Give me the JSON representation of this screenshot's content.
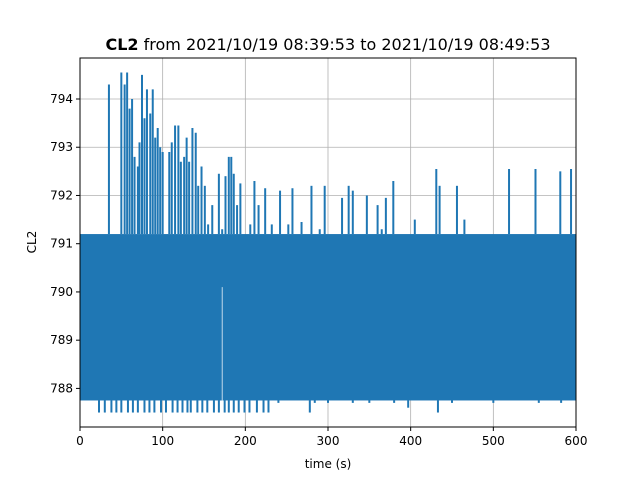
{
  "chart_data": {
    "type": "line",
    "title_bold": "CL2",
    "title_rest": " from 2021/10/19 08:39:53 to 2021/10/19 08:49:53",
    "xlabel": "time (s)",
    "ylabel": "CL2",
    "xlim": [
      0,
      600
    ],
    "ylim": [
      787.2,
      794.85
    ],
    "xticks": [
      0,
      100,
      200,
      300,
      400,
      500,
      600
    ],
    "yticks": [
      788,
      789,
      790,
      791,
      792,
      793,
      794
    ],
    "grid": true,
    "legend": "none",
    "series": [
      {
        "color": "#1f77b4",
        "baseline": {
          "low": 787.75,
          "high": 791.2
        },
        "spikes_up": [
          [
            22,
            791.2
          ],
          [
            25,
            791.2
          ],
          [
            35,
            794.3
          ],
          [
            45,
            791.2
          ],
          [
            50,
            794.55
          ],
          [
            54,
            794.3
          ],
          [
            57,
            794.55
          ],
          [
            60,
            793.8
          ],
          [
            63,
            794.0
          ],
          [
            66,
            792.8
          ],
          [
            70,
            792.6
          ],
          [
            72,
            793.1
          ],
          [
            75,
            794.5
          ],
          [
            78,
            793.6
          ],
          [
            81,
            794.2
          ],
          [
            85,
            793.7
          ],
          [
            88,
            794.2
          ],
          [
            91,
            793.2
          ],
          [
            94,
            793.4
          ],
          [
            97,
            793.0
          ],
          [
            100,
            792.9
          ],
          [
            103,
            791.2
          ],
          [
            108,
            792.9
          ],
          [
            111,
            793.1
          ],
          [
            115,
            793.45
          ],
          [
            119,
            793.45
          ],
          [
            122,
            792.7
          ],
          [
            126,
            792.8
          ],
          [
            129,
            793.2
          ],
          [
            132,
            792.7
          ],
          [
            136,
            793.4
          ],
          [
            140,
            793.3
          ],
          [
            143,
            792.2
          ],
          [
            147,
            792.6
          ],
          [
            151,
            792.2
          ],
          [
            155,
            791.4
          ],
          [
            160,
            791.8
          ],
          [
            168,
            792.45
          ],
          [
            172,
            791.3
          ],
          [
            176,
            792.4
          ],
          [
            180,
            792.8
          ],
          [
            183,
            792.8
          ],
          [
            186,
            792.45
          ],
          [
            190,
            791.8
          ],
          [
            194,
            792.25
          ],
          [
            200,
            791.2
          ],
          [
            206,
            791.4
          ],
          [
            211,
            792.3
          ],
          [
            216,
            791.8
          ],
          [
            224,
            792.15
          ],
          [
            232,
            791.4
          ],
          [
            242,
            792.1
          ],
          [
            252,
            791.4
          ],
          [
            257,
            792.15
          ],
          [
            262,
            791.2
          ],
          [
            268,
            791.45
          ],
          [
            280,
            792.2
          ],
          [
            290,
            791.3
          ],
          [
            296,
            792.2
          ],
          [
            310,
            791.2
          ],
          [
            317,
            791.95
          ],
          [
            325,
            792.2
          ],
          [
            330,
            792.1
          ],
          [
            338,
            791.2
          ],
          [
            347,
            792.0
          ],
          [
            352,
            791.2
          ],
          [
            360,
            791.8
          ],
          [
            365,
            791.3
          ],
          [
            370,
            791.95
          ],
          [
            379,
            792.3
          ],
          [
            386,
            791.2
          ],
          [
            396,
            791.2
          ],
          [
            405,
            791.5
          ],
          [
            414,
            791.2
          ],
          [
            426,
            791.2
          ],
          [
            431,
            792.55
          ],
          [
            435,
            792.2
          ],
          [
            445,
            791.2
          ],
          [
            456,
            792.2
          ],
          [
            465,
            791.5
          ],
          [
            470,
            791.2
          ],
          [
            485,
            791.2
          ],
          [
            495,
            791.2
          ],
          [
            519,
            792.55
          ],
          [
            530,
            791.2
          ],
          [
            540,
            791.2
          ],
          [
            551,
            792.55
          ],
          [
            560,
            791.2
          ],
          [
            575,
            791.2
          ],
          [
            581,
            792.5
          ],
          [
            589,
            791.2
          ],
          [
            594,
            792.55
          ],
          [
            598,
            791.2
          ]
        ],
        "spikes_down": [
          [
            23,
            787.5
          ],
          [
            30,
            787.5
          ],
          [
            38,
            787.5
          ],
          [
            44,
            787.5
          ],
          [
            50,
            787.5
          ],
          [
            58,
            787.5
          ],
          [
            64,
            787.5
          ],
          [
            70,
            787.5
          ],
          [
            78,
            787.5
          ],
          [
            84,
            787.5
          ],
          [
            90,
            787.5
          ],
          [
            98,
            787.5
          ],
          [
            104,
            787.5
          ],
          [
            112,
            787.5
          ],
          [
            118,
            787.5
          ],
          [
            124,
            787.5
          ],
          [
            130,
            787.5
          ],
          [
            134,
            787.5
          ],
          [
            142,
            787.5
          ],
          [
            148,
            787.5
          ],
          [
            154,
            787.5
          ],
          [
            162,
            787.5
          ],
          [
            168,
            787.5
          ],
          [
            175,
            787.5
          ],
          [
            180,
            787.5
          ],
          [
            186,
            787.5
          ],
          [
            192,
            787.5
          ],
          [
            199,
            787.5
          ],
          [
            205,
            787.5
          ],
          [
            214,
            787.5
          ],
          [
            222,
            787.5
          ],
          [
            228,
            787.5
          ],
          [
            240,
            787.7
          ],
          [
            278,
            787.5
          ],
          [
            284,
            787.7
          ],
          [
            300,
            787.7
          ],
          [
            330,
            787.7
          ],
          [
            350,
            787.7
          ],
          [
            380,
            787.7
          ],
          [
            397,
            787.6
          ],
          [
            433,
            787.5
          ],
          [
            450,
            787.7
          ],
          [
            500,
            787.7
          ],
          [
            555,
            787.7
          ],
          [
            582,
            787.7
          ]
        ],
        "notable_dip": {
          "x": 172,
          "y": 790.1
        }
      }
    ]
  }
}
